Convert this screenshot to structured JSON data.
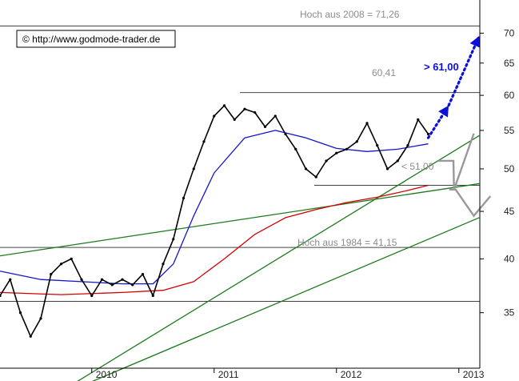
{
  "chart_data": {
    "type": "line",
    "copyright": "© http://www.godmode-trader.de",
    "y_scale": "log",
    "ylim": [
      30.5,
      76.0
    ],
    "y_ticks": [
      35,
      40,
      45,
      50,
      55,
      60,
      65,
      70
    ],
    "x_ticks": [
      "2010",
      "2011",
      "2012",
      "2013"
    ],
    "annotations": {
      "high_2008": "Hoch aus 2008  =  71,26",
      "level_6041": "60,41",
      "target_61": "> 61,00",
      "level_51": "< 51,00",
      "high_1984": "Hoch aus 1984 = 41,15"
    },
    "horizontal_levels": [
      {
        "name": "high_2008",
        "value": 71.26
      },
      {
        "name": "level_6041",
        "value": 60.41
      },
      {
        "name": "level_48",
        "value": 48.0
      },
      {
        "name": "high_1984",
        "value": 41.15
      },
      {
        "name": "low_support",
        "value": 36.0
      }
    ],
    "series": [
      {
        "name": "Kurs",
        "color": "#000000",
        "x": [
          "2009-04",
          "2009-05",
          "2009-06",
          "2009-07",
          "2009-08",
          "2009-09",
          "2009-10",
          "2009-11",
          "2009-12",
          "2010-01",
          "2010-02",
          "2010-03",
          "2010-04",
          "2010-05",
          "2010-06",
          "2010-07",
          "2010-08",
          "2010-09",
          "2010-10",
          "2010-11",
          "2010-12",
          "2011-01",
          "2011-02",
          "2011-03",
          "2011-04",
          "2011-05",
          "2011-06",
          "2011-07",
          "2011-08",
          "2011-09",
          "2011-10",
          "2011-11",
          "2011-12",
          "2012-01",
          "2012-02",
          "2012-03",
          "2012-04",
          "2012-05",
          "2012-06",
          "2012-07",
          "2012-08",
          "2012-09",
          "2012-10"
        ],
        "values": [
          36.5,
          38.0,
          35.0,
          33.0,
          34.5,
          38.5,
          39.5,
          40.0,
          38.0,
          36.5,
          38.0,
          37.5,
          38.0,
          37.5,
          38.5,
          36.5,
          39.5,
          42.0,
          46.5,
          50.0,
          53.5,
          57.0,
          58.5,
          56.5,
          58.0,
          57.5,
          55.5,
          57.0,
          54.5,
          52.5,
          50.0,
          49.0,
          51.0,
          52.0,
          52.5,
          53.5,
          56.0,
          53.0,
          50.0,
          51.0,
          53.0,
          56.5,
          54.5
        ]
      },
      {
        "name": "MA-blau",
        "color": "#1515c8",
        "x": [
          "2009-04",
          "2009-08",
          "2009-12",
          "2010-04",
          "2010-07",
          "2010-09",
          "2010-11",
          "2011-01",
          "2011-04",
          "2011-07",
          "2011-10",
          "2012-01",
          "2012-04",
          "2012-07",
          "2012-10"
        ],
        "values": [
          38.8,
          38.0,
          37.8,
          37.6,
          37.6,
          39.5,
          44.5,
          49.5,
          54.0,
          55.0,
          54.0,
          52.6,
          52.2,
          52.5,
          53.2
        ]
      },
      {
        "name": "MA-rot",
        "color": "#d40000",
        "x": [
          "2009-04",
          "2009-10",
          "2010-04",
          "2010-08",
          "2010-11",
          "2011-02",
          "2011-05",
          "2011-08",
          "2011-11",
          "2012-02",
          "2012-05",
          "2012-08",
          "2012-10"
        ],
        "values": [
          36.8,
          36.6,
          36.8,
          37.0,
          37.8,
          40.0,
          42.5,
          44.3,
          45.2,
          46.0,
          46.6,
          47.4,
          48.0
        ]
      }
    ],
    "trend_lines": [
      {
        "name": "obere-trendlinie",
        "color": "#1b7a1b",
        "from": [
          "2009-04",
          40.3
        ],
        "to": [
          "2013-03",
          48.2
        ]
      },
      {
        "name": "steile-trendlinie",
        "color": "#1b7a1b",
        "from": [
          "2009-10",
          28.8
        ],
        "to": [
          "2013-03",
          54.3
        ]
      },
      {
        "name": "untere-trendlinie",
        "color": "#1b7a1b",
        "from": [
          "2010-01",
          29.5
        ],
        "to": [
          "2013-03",
          44.3
        ]
      }
    ],
    "projections": [
      {
        "name": "bull-target",
        "color": "#0a10d8",
        "points": [
          [
            "2012-10",
            54.0
          ],
          [
            "2012-12",
            58.5
          ],
          [
            "2013-03",
            69.5
          ]
        ]
      },
      {
        "name": "bear-scenario",
        "color": "#999999",
        "points": [
          [
            "2012-11",
            51.0
          ],
          [
            "2012-12",
            51.0
          ],
          [
            "2013-01",
            47.5
          ],
          [
            "2013-02",
            53.5
          ],
          [
            "2013-01",
            47.5
          ],
          [
            "2013-01",
            47.5
          ],
          [
            "2013-02",
            44.5
          ],
          [
            "2013-03",
            46.0
          ]
        ]
      }
    ]
  }
}
